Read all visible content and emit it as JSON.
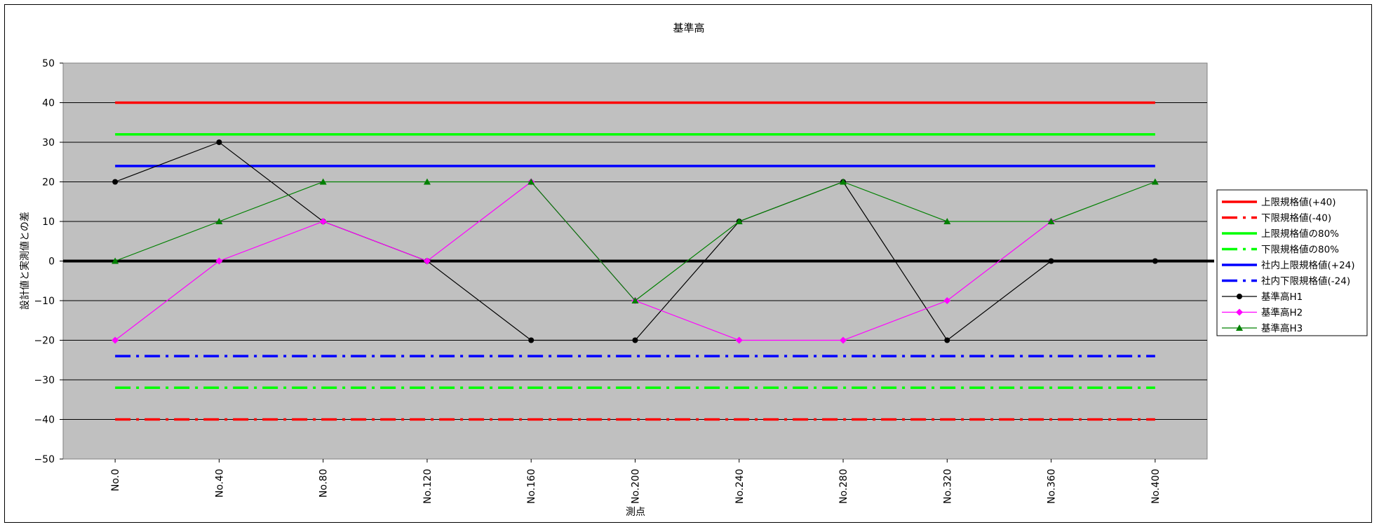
{
  "chart_data": {
    "type": "line",
    "title": "基準高",
    "xlabel": "測点",
    "ylabel": "設計値と実測値との差",
    "ylim": [
      -50,
      50
    ],
    "yticks": [
      50,
      40,
      30,
      20,
      10,
      0,
      -10,
      -20,
      -30,
      -40,
      -50
    ],
    "categories": [
      "No.0",
      "No.40",
      "No.80",
      "No.120",
      "No.160",
      "No.200",
      "No.240",
      "No.280",
      "No.320",
      "No.360",
      "No.400"
    ],
    "grid": true,
    "legend_position": "right",
    "plot_background": "#c0c0c0",
    "series": [
      {
        "name": "上限規格値(+40)",
        "color": "#ff0000",
        "dash": "solid",
        "marker": "none",
        "values": [
          40,
          40,
          40,
          40,
          40,
          40,
          40,
          40,
          40,
          40,
          40
        ]
      },
      {
        "name": "下限規格値(-40)",
        "color": "#ff0000",
        "dash": "dashdot",
        "marker": "none",
        "values": [
          -40,
          -40,
          -40,
          -40,
          -40,
          -40,
          -40,
          -40,
          -40,
          -40,
          -40
        ]
      },
      {
        "name": "上限規格値の80%",
        "color": "#00ff00",
        "dash": "solid",
        "marker": "none",
        "values": [
          32,
          32,
          32,
          32,
          32,
          32,
          32,
          32,
          32,
          32,
          32
        ]
      },
      {
        "name": "下限規格値の80%",
        "color": "#00ff00",
        "dash": "dashdot",
        "marker": "none",
        "values": [
          -32,
          -32,
          -32,
          -32,
          -32,
          -32,
          -32,
          -32,
          -32,
          -32,
          -32
        ]
      },
      {
        "name": "社内上限規格値(+24)",
        "color": "#0000ff",
        "dash": "solid",
        "marker": "none",
        "values": [
          24,
          24,
          24,
          24,
          24,
          24,
          24,
          24,
          24,
          24,
          24
        ]
      },
      {
        "name": "社内下限規格値(-24)",
        "color": "#0000ff",
        "dash": "dashdot",
        "marker": "none",
        "values": [
          -24,
          -24,
          -24,
          -24,
          -24,
          -24,
          -24,
          -24,
          -24,
          -24,
          -24
        ]
      },
      {
        "name": "基準高H1",
        "color": "#000000",
        "dash": "solid",
        "marker": "circle",
        "values": [
          20,
          30,
          10,
          0,
          -20,
          -20,
          10,
          20,
          -20,
          0,
          0
        ]
      },
      {
        "name": "基準高H2",
        "color": "#ff00ff",
        "dash": "solid",
        "marker": "diamond",
        "values": [
          -20,
          0,
          10,
          0,
          20,
          -10,
          -20,
          -20,
          -10,
          10,
          null
        ]
      },
      {
        "name": "基準高H3",
        "color": "#008000",
        "dash": "solid",
        "marker": "triangle",
        "values": [
          0,
          10,
          20,
          20,
          20,
          -10,
          10,
          20,
          10,
          10,
          20
        ]
      }
    ]
  }
}
